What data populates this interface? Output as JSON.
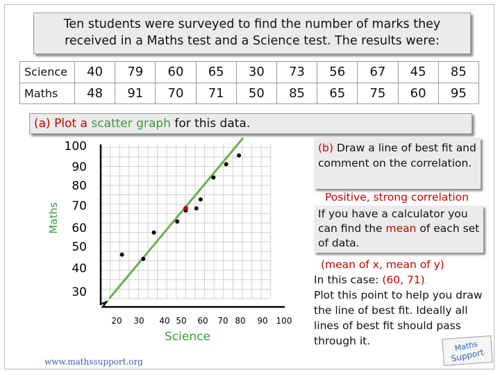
{
  "intro": {
    "line1": "Ten students were surveyed to find the number of marks they",
    "line2": "received in a Maths test and a Science test. The results were:"
  },
  "table": {
    "rows": [
      {
        "label": "Science",
        "values": [
          "40",
          "79",
          "60",
          "65",
          "30",
          "73",
          "56",
          "67",
          "45",
          "85"
        ]
      },
      {
        "label": "Maths",
        "values": [
          "48",
          "91",
          "70",
          "71",
          "50",
          "85",
          "65",
          "75",
          "60",
          "95"
        ]
      }
    ]
  },
  "part_a": {
    "prefix": "(a) Plot a ",
    "highlight": "scatter graph",
    "suffix": " for this data."
  },
  "part_b": {
    "prefix": "(b)",
    "text": " Draw a line of best fit and comment on the correlation."
  },
  "answer": "Positive, strong correlation",
  "hint": {
    "before": "If you have a calculator you can find the ",
    "highlight": "mean",
    "after": " of each set of data."
  },
  "explanation": {
    "mean_note": "(mean of x, mean of y)",
    "case_prefix": "In this case: ",
    "case_point": "(60, 71)",
    "body": "Plot this point to help you draw the line of best fit. Ideally all lines of best fit should pass through it."
  },
  "footer": "www.mathssupport.org",
  "logo_text": "Maths Support",
  "colors": {
    "green": "#3a9a3a",
    "red": "#c40000",
    "panel": "#ebebeb"
  },
  "chart_data": {
    "type": "scatter",
    "xlabel": "Science",
    "ylabel": "Maths",
    "x_ticks": [
      "20",
      "30",
      "40",
      "50",
      "60",
      "70",
      "80",
      "90",
      "100"
    ],
    "y_ticks": [
      "30",
      "40",
      "50",
      "60",
      "70",
      "80",
      "90",
      "100"
    ],
    "points": [
      {
        "x": 40,
        "y": 48
      },
      {
        "x": 79,
        "y": 91
      },
      {
        "x": 60,
        "y": 70
      },
      {
        "x": 65,
        "y": 71
      },
      {
        "x": 30,
        "y": 50
      },
      {
        "x": 73,
        "y": 85
      },
      {
        "x": 56,
        "y": 65
      },
      {
        "x": 67,
        "y": 75
      },
      {
        "x": 45,
        "y": 60
      },
      {
        "x": 85,
        "y": 95
      }
    ],
    "mean_point": {
      "x": 60,
      "y": 71
    },
    "best_fit": {
      "from": {
        "x": 24,
        "y": 30
      },
      "to": {
        "x": 87,
        "y": 103
      }
    },
    "xlim": [
      20,
      100
    ],
    "ylim": [
      30,
      100
    ],
    "grid": true,
    "best_fit_color": "#6ab04c"
  }
}
